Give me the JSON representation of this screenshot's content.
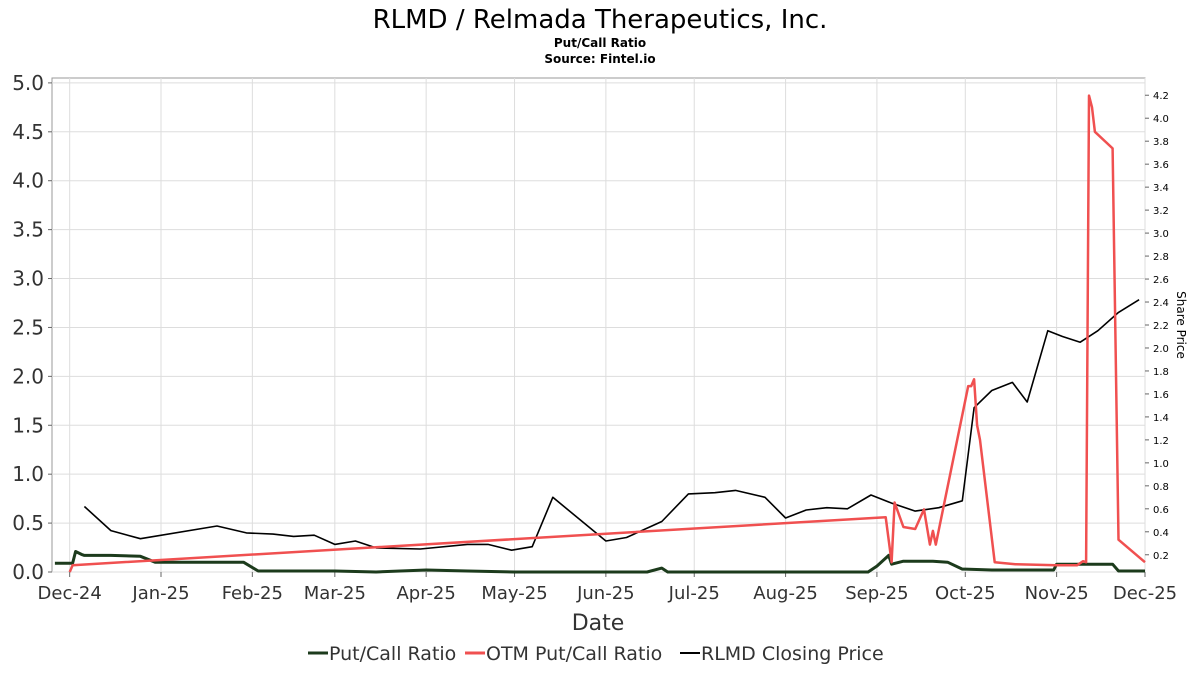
{
  "chart_data": {
    "type": "line",
    "title": "RLMD / Relmada Therapeutics, Inc.",
    "subtitle_lines": [
      "Put/Call Ratio",
      "Source: Fintel.io"
    ],
    "xlabel": "Date",
    "ylabel_right": "Share Price",
    "x_ticks": [
      "Dec-24",
      "Jan-25",
      "Feb-25",
      "Mar-25",
      "Apr-25",
      "May-25",
      "Jun-25",
      "Jul-25",
      "Aug-25",
      "Sep-25",
      "Oct-25",
      "Nov-25",
      "Dec-25"
    ],
    "y_left_ticks": [
      "0.0",
      "0.5",
      "1.0",
      "1.5",
      "2.0",
      "2.5",
      "3.0",
      "3.5",
      "4.0",
      "4.5",
      "5.0"
    ],
    "y_right_ticks": [
      "0.2",
      "0.4",
      "0.6",
      "0.8",
      "1.0",
      "1.2",
      "1.4",
      "1.6",
      "1.8",
      "2.0",
      "2.2",
      "2.4",
      "2.6",
      "2.8",
      "3.0",
      "3.2",
      "3.4",
      "3.6",
      "3.8",
      "4.0",
      "4.2"
    ],
    "y_left_range": [
      0,
      5.05
    ],
    "y_right_range": [
      0.05,
      4.35
    ],
    "x_domain": [
      "2024-11-25",
      "2025-12-01"
    ],
    "grid": true,
    "legend_position": "bottom-center",
    "series": [
      {
        "name": "Put/Call Ratio",
        "axis": "left",
        "color": "#1c3b1c",
        "x": [
          "2024-11-26",
          "2024-12-02",
          "2024-12-03",
          "2024-12-05",
          "2024-12-06",
          "2024-12-15",
          "2024-12-25",
          "2024-12-30",
          "2025-01-05",
          "2025-01-20",
          "2025-01-29",
          "2025-02-03",
          "2025-02-15",
          "2025-03-01",
          "2025-03-15",
          "2025-04-01",
          "2025-04-15",
          "2025-05-01",
          "2025-05-15",
          "2025-06-01",
          "2025-06-15",
          "2025-06-20",
          "2025-06-22",
          "2025-07-01",
          "2025-07-15",
          "2025-08-01",
          "2025-08-15",
          "2025-08-29",
          "2025-09-01",
          "2025-09-05",
          "2025-09-06",
          "2025-09-10",
          "2025-09-20",
          "2025-09-25",
          "2025-09-30",
          "2025-10-01",
          "2025-10-10",
          "2025-10-20",
          "2025-10-31",
          "2025-11-01",
          "2025-11-10",
          "2025-11-20",
          "2025-11-22",
          "2025-12-01"
        ],
        "y": [
          0.09,
          0.09,
          0.21,
          0.18,
          0.17,
          0.17,
          0.16,
          0.1,
          0.1,
          0.1,
          0.1,
          0.01,
          0.01,
          0.01,
          0.0,
          0.02,
          0.01,
          0.0,
          0.0,
          0.0,
          0.0,
          0.04,
          0.0,
          0.0,
          0.0,
          0.0,
          0.0,
          0.0,
          0.06,
          0.17,
          0.08,
          0.11,
          0.11,
          0.1,
          0.03,
          0.03,
          0.02,
          0.02,
          0.02,
          0.08,
          0.08,
          0.08,
          0.01,
          0.01
        ]
      },
      {
        "name": "OTM Put/Call Ratio",
        "axis": "left",
        "color": "#f05050",
        "x": [
          "2024-12-01",
          "2024-12-02",
          "2025-09-04",
          "2025-09-06",
          "2025-09-07",
          "2025-09-10",
          "2025-09-14",
          "2025-09-17",
          "2025-09-19",
          "2025-09-20",
          "2025-09-21",
          "2025-10-02",
          "2025-10-03",
          "2025-10-04",
          "2025-10-05",
          "2025-10-06",
          "2025-10-11",
          "2025-10-18",
          "2025-11-01",
          "2025-11-08",
          "2025-11-10",
          "2025-11-11",
          "2025-11-12",
          "2025-11-13",
          "2025-11-14",
          "2025-11-20",
          "2025-11-22",
          "2025-12-01"
        ],
        "y": [
          0.0,
          0.07,
          0.56,
          0.1,
          0.71,
          0.46,
          0.44,
          0.64,
          0.28,
          0.42,
          0.28,
          1.9,
          1.9,
          1.97,
          1.5,
          1.35,
          0.1,
          0.08,
          0.07,
          0.07,
          0.11,
          0.1,
          4.87,
          4.75,
          4.5,
          4.33,
          0.33,
          0.1
        ]
      },
      {
        "name": "RLMD Closing Price",
        "axis": "right",
        "color": "#000000",
        "x": [
          "2024-12-06",
          "2024-12-15",
          "2024-12-25",
          "2025-01-20",
          "2025-01-30",
          "2025-02-08",
          "2025-02-15",
          "2025-02-22",
          "2025-03-01",
          "2025-03-08",
          "2025-03-15",
          "2025-03-30",
          "2025-04-15",
          "2025-04-22",
          "2025-04-30",
          "2025-05-07",
          "2025-05-14",
          "2025-06-01",
          "2025-06-08",
          "2025-06-20",
          "2025-06-29",
          "2025-07-08",
          "2025-07-15",
          "2025-07-25",
          "2025-08-01",
          "2025-08-08",
          "2025-08-15",
          "2025-08-22",
          "2025-08-30",
          "2025-09-06",
          "2025-09-14",
          "2025-09-22",
          "2025-09-30",
          "2025-10-04",
          "2025-10-10",
          "2025-10-17",
          "2025-10-22",
          "2025-10-29",
          "2025-11-03",
          "2025-11-09",
          "2025-11-15",
          "2025-11-22",
          "2025-11-29"
        ],
        "y": [
          0.62,
          0.41,
          0.34,
          0.45,
          0.39,
          0.38,
          0.36,
          0.37,
          0.29,
          0.32,
          0.26,
          0.25,
          0.29,
          0.29,
          0.24,
          0.27,
          0.7,
          0.32,
          0.35,
          0.49,
          0.73,
          0.74,
          0.76,
          0.7,
          0.52,
          0.59,
          0.61,
          0.6,
          0.72,
          0.65,
          0.58,
          0.61,
          0.67,
          1.48,
          1.63,
          1.7,
          1.53,
          2.15,
          2.1,
          2.05,
          2.15,
          2.31,
          2.42
        ]
      }
    ]
  }
}
